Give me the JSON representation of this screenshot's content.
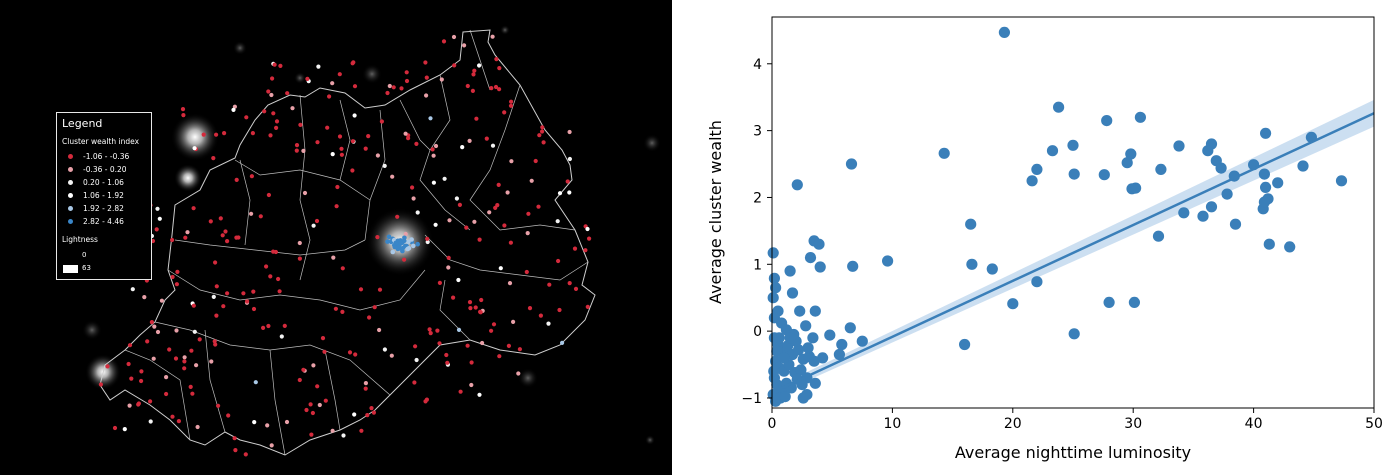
{
  "map": {
    "legend": {
      "title": "Legend",
      "subtitle": "Cluster wealth index",
      "classes": [
        {
          "label": "-1.06 - -0.36",
          "color": "#d42a3c"
        },
        {
          "label": "-0.36 - 0.20",
          "color": "#e8a0a8"
        },
        {
          "label": "0.20 - 1.06",
          "color": "#f3f3f3"
        },
        {
          "label": "1.06 - 1.92",
          "color": "#ffffff"
        },
        {
          "label": "1.92 - 2.82",
          "color": "#a9c8e6"
        },
        {
          "label": "2.82 - 4.46",
          "color": "#3a86c8"
        }
      ],
      "lightness_title": "Lightness",
      "lightness_min": "0",
      "lightness_max": "63"
    }
  },
  "chart_data": {
    "type": "scatter",
    "title": "",
    "xlabel": "Average nighttime luminosity",
    "ylabel": "Average cluster wealth",
    "xlim": [
      0,
      50
    ],
    "ylim": [
      -1.15,
      4.7
    ],
    "xticks": [
      "0",
      "10",
      "20",
      "30",
      "40",
      "50"
    ],
    "yticks": [
      "−1",
      "0",
      "1",
      "2",
      "3",
      "4"
    ],
    "grid": false,
    "point_color": "#3a7fb9",
    "line_color": "#3a7fb9",
    "band_color": "#c7dcef",
    "regression": {
      "slope": 0.0836,
      "intercept": -0.92,
      "band_halfwidth_start": 0.06,
      "band_halfwidth_end": 0.2
    },
    "points": [
      [
        19.3,
        4.47
      ],
      [
        23.8,
        3.35
      ],
      [
        30.6,
        3.2
      ],
      [
        27.8,
        3.15
      ],
      [
        23.3,
        2.7
      ],
      [
        25.0,
        2.78
      ],
      [
        29.8,
        2.65
      ],
      [
        36.5,
        2.8
      ],
      [
        41.0,
        2.96
      ],
      [
        44.8,
        2.9
      ],
      [
        33.8,
        2.77
      ],
      [
        14.3,
        2.66
      ],
      [
        6.6,
        2.5
      ],
      [
        2.1,
        2.19
      ],
      [
        21.6,
        2.25
      ],
      [
        22.0,
        2.42
      ],
      [
        25.1,
        2.35
      ],
      [
        29.5,
        2.52
      ],
      [
        29.9,
        2.13
      ],
      [
        30.2,
        2.14
      ],
      [
        32.3,
        2.42
      ],
      [
        27.6,
        2.34
      ],
      [
        36.2,
        2.7
      ],
      [
        36.9,
        2.55
      ],
      [
        37.3,
        2.44
      ],
      [
        38.4,
        2.32
      ],
      [
        40.0,
        2.49
      ],
      [
        40.9,
        2.35
      ],
      [
        41.0,
        2.15
      ],
      [
        41.2,
        1.98
      ],
      [
        40.8,
        1.83
      ],
      [
        40.9,
        1.93
      ],
      [
        42.0,
        2.22
      ],
      [
        44.1,
        2.47
      ],
      [
        47.3,
        2.25
      ],
      [
        36.5,
        1.86
      ],
      [
        35.8,
        1.72
      ],
      [
        37.8,
        2.05
      ],
      [
        38.5,
        1.6
      ],
      [
        34.2,
        1.77
      ],
      [
        32.1,
        1.42
      ],
      [
        41.3,
        1.3
      ],
      [
        43.0,
        1.26
      ],
      [
        16.5,
        1.6
      ],
      [
        16.6,
        1.0
      ],
      [
        18.3,
        0.93
      ],
      [
        22.0,
        0.74
      ],
      [
        9.6,
        1.05
      ],
      [
        6.7,
        0.97
      ],
      [
        3.5,
        1.35
      ],
      [
        3.9,
        1.3
      ],
      [
        3.2,
        1.1
      ],
      [
        20.0,
        0.41
      ],
      [
        28.0,
        0.43
      ],
      [
        30.1,
        0.43
      ],
      [
        25.1,
        -0.04
      ],
      [
        16.0,
        -0.2
      ],
      [
        7.5,
        -0.15
      ],
      [
        5.8,
        -0.2
      ],
      [
        6.5,
        0.05
      ],
      [
        4.8,
        -0.06
      ],
      [
        5.6,
        -0.35
      ],
      [
        0.1,
        1.17
      ],
      [
        0.2,
        0.79
      ],
      [
        0.3,
        0.65
      ],
      [
        1.5,
        0.9
      ],
      [
        1.7,
        0.57
      ],
      [
        0.1,
        0.5
      ],
      [
        0.5,
        0.3
      ],
      [
        2.3,
        0.3
      ],
      [
        3.6,
        0.3
      ],
      [
        4.0,
        0.96
      ],
      [
        0.2,
        0.2
      ],
      [
        0.8,
        0.12
      ],
      [
        1.2,
        0.02
      ],
      [
        1.8,
        -0.05
      ],
      [
        2.8,
        0.08
      ],
      [
        3.4,
        -0.1
      ],
      [
        0.2,
        -0.1
      ],
      [
        0.5,
        -0.2
      ],
      [
        0.9,
        -0.3
      ],
      [
        1.3,
        -0.22
      ],
      [
        1.7,
        -0.35
      ],
      [
        2.2,
        -0.28
      ],
      [
        2.6,
        -0.42
      ],
      [
        3.1,
        -0.38
      ],
      [
        0.3,
        -0.45
      ],
      [
        0.6,
        -0.55
      ],
      [
        1.0,
        -0.6
      ],
      [
        1.4,
        -0.5
      ],
      [
        1.9,
        -0.62
      ],
      [
        2.4,
        -0.58
      ],
      [
        2.9,
        -0.7
      ],
      [
        3.5,
        -0.45
      ],
      [
        0.2,
        -0.7
      ],
      [
        0.4,
        -0.8
      ],
      [
        0.8,
        -0.9
      ],
      [
        1.2,
        -0.78
      ],
      [
        1.6,
        -0.85
      ],
      [
        2.1,
        -0.72
      ],
      [
        0.1,
        -0.95
      ],
      [
        0.3,
        -1.05
      ],
      [
        0.7,
        -1.0
      ],
      [
        1.1,
        -0.98
      ],
      [
        2.6,
        -1.0
      ],
      [
        2.9,
        -0.95
      ],
      [
        3.6,
        -0.78
      ],
      [
        0.4,
        -0.3
      ],
      [
        1.0,
        -0.4
      ],
      [
        0.15,
        -0.6
      ],
      [
        0.6,
        -0.1
      ],
      [
        2.0,
        -0.15
      ],
      [
        3.0,
        -0.25
      ],
      [
        4.2,
        -0.4
      ],
      [
        2.5,
        -0.8
      ],
      [
        1.5,
        -0.1
      ]
    ]
  }
}
